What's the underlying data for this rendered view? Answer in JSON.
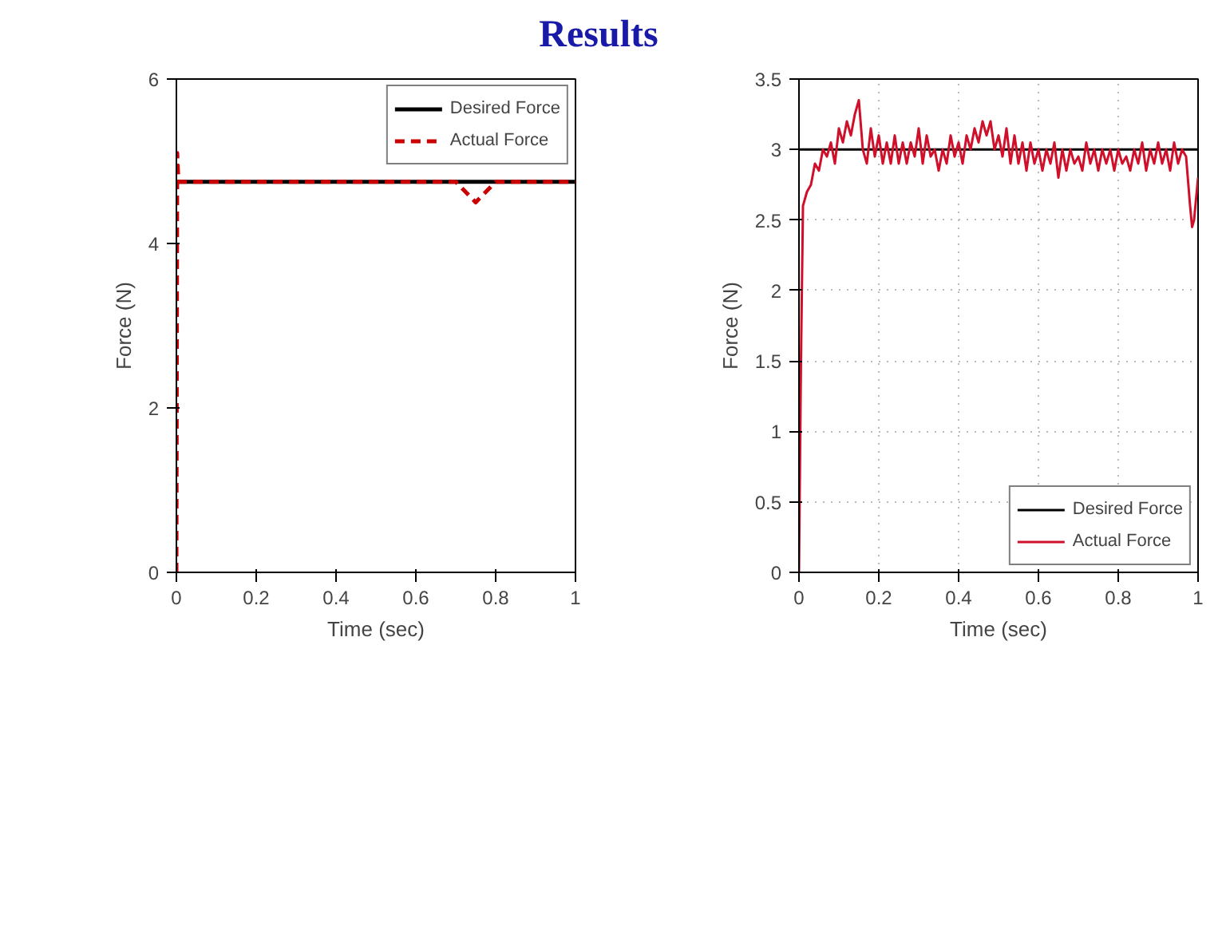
{
  "chart_data": [
    {
      "type": "line",
      "title": "Results",
      "xlabel": "Time (sec)",
      "ylabel": "Force (N)",
      "xlim": [
        0,
        1
      ],
      "ylim": [
        0,
        6
      ],
      "xticks": [
        0,
        0.2,
        0.4,
        0.6,
        0.8,
        1
      ],
      "yticks": [
        0,
        2,
        4,
        6
      ],
      "legend": "top right",
      "series": [
        {
          "name": "Desired Force",
          "color": "#000000",
          "line_style": "solid",
          "x": [
            0,
            1
          ],
          "values": [
            4.75,
            4.75
          ]
        },
        {
          "name": "Actual Force",
          "color": "#cc0000",
          "line_style": "dashed",
          "x": [
            0,
            0.002,
            0.005,
            0.01,
            0.7,
            0.72,
            0.75,
            0.78,
            0.8,
            1
          ],
          "values": [
            0,
            5.1,
            4.75,
            4.75,
            4.75,
            4.65,
            4.5,
            4.65,
            4.75,
            4.75
          ]
        }
      ]
    },
    {
      "type": "line",
      "xlabel": "Time (sec)",
      "ylabel": "Force (N)",
      "xlim": [
        0,
        1
      ],
      "ylim": [
        0,
        3.5
      ],
      "xticks": [
        0,
        0.2,
        0.4,
        0.6,
        0.8,
        1
      ],
      "yticks": [
        0,
        0.5,
        1,
        1.5,
        2,
        2.5,
        3,
        3.5
      ],
      "grid": true,
      "legend": "bottom right",
      "series": [
        {
          "name": "Desired Force",
          "color": "#000000",
          "line_style": "solid",
          "x": [
            0,
            1
          ],
          "values": [
            3,
            3
          ]
        },
        {
          "name": "Actual Force",
          "color": "#d0102a",
          "line_style": "solid",
          "x": [
            0,
            0.005,
            0.01,
            0.02,
            0.03,
            0.04,
            0.05,
            0.06,
            0.07,
            0.08,
            0.09,
            0.1,
            0.11,
            0.12,
            0.13,
            0.14,
            0.15,
            0.16,
            0.17,
            0.18,
            0.19,
            0.2,
            0.21,
            0.22,
            0.23,
            0.24,
            0.25,
            0.26,
            0.27,
            0.28,
            0.29,
            0.3,
            0.31,
            0.32,
            0.33,
            0.34,
            0.35,
            0.36,
            0.37,
            0.38,
            0.39,
            0.4,
            0.41,
            0.42,
            0.43,
            0.44,
            0.45,
            0.46,
            0.47,
            0.48,
            0.49,
            0.5,
            0.51,
            0.52,
            0.53,
            0.54,
            0.55,
            0.56,
            0.57,
            0.58,
            0.59,
            0.6,
            0.61,
            0.62,
            0.63,
            0.64,
            0.65,
            0.66,
            0.67,
            0.68,
            0.69,
            0.7,
            0.71,
            0.72,
            0.73,
            0.74,
            0.75,
            0.76,
            0.77,
            0.78,
            0.79,
            0.8,
            0.81,
            0.82,
            0.83,
            0.84,
            0.85,
            0.86,
            0.87,
            0.88,
            0.89,
            0.9,
            0.91,
            0.92,
            0.93,
            0.94,
            0.95,
            0.96,
            0.97,
            0.98,
            0.985,
            0.99,
            1.0
          ],
          "values": [
            0,
            1.5,
            2.6,
            2.7,
            2.75,
            2.9,
            2.85,
            3.0,
            2.95,
            3.05,
            2.9,
            3.15,
            3.05,
            3.2,
            3.1,
            3.25,
            3.35,
            3.0,
            2.9,
            3.15,
            2.95,
            3.1,
            2.9,
            3.05,
            2.9,
            3.1,
            2.9,
            3.05,
            2.9,
            3.05,
            2.95,
            3.15,
            2.9,
            3.1,
            2.95,
            3.0,
            2.85,
            3.0,
            2.9,
            3.1,
            2.95,
            3.05,
            2.9,
            3.1,
            3.0,
            3.15,
            3.05,
            3.2,
            3.1,
            3.2,
            3.0,
            3.1,
            2.95,
            3.15,
            2.9,
            3.1,
            2.9,
            3.05,
            2.85,
            3.05,
            2.9,
            3.0,
            2.85,
            3.0,
            2.9,
            3.05,
            2.8,
            3.0,
            2.85,
            3.0,
            2.9,
            2.95,
            2.85,
            3.05,
            2.9,
            3.0,
            2.85,
            3.0,
            2.9,
            3.0,
            2.85,
            3.0,
            2.9,
            2.95,
            2.85,
            3.0,
            2.9,
            3.05,
            2.85,
            3.0,
            2.9,
            3.05,
            2.9,
            3.0,
            2.85,
            3.05,
            2.9,
            3.0,
            2.95,
            2.6,
            2.45,
            2.5,
            2.8
          ]
        }
      ]
    }
  ]
}
